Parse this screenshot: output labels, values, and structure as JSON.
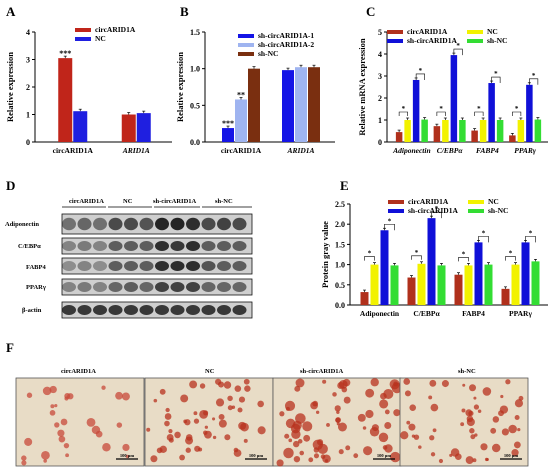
{
  "panel_letters": [
    "A",
    "B",
    "C",
    "D",
    "E",
    "F"
  ],
  "colors": {
    "circARID1A": "#c0251a",
    "NC_A": "#1f1fe0",
    "sh1": "#1414e6",
    "sh2": "#9fb4f0",
    "shNC_B": "#7a2f10",
    "circARID1A_C": "#b0301c",
    "NC_C": "#f2f200",
    "sh_C": "#1010d8",
    "shNC_C": "#33dd33"
  },
  "chart_data": [
    {
      "type": "bar",
      "panel": "A",
      "categories": [
        "circARID1A",
        "ARID1A"
      ],
      "category_italic": [
        false,
        true
      ],
      "series": [
        {
          "name": "circARID1A",
          "values": [
            3.05,
            1.0
          ]
        },
        {
          "name": "NC",
          "values": [
            1.12,
            1.05
          ]
        }
      ],
      "ylabel": "Relative expression",
      "ylim": [
        0,
        4
      ],
      "yticks": [
        "0",
        "1",
        "2",
        "3",
        "4"
      ],
      "annotations": [
        "***"
      ]
    },
    {
      "type": "bar",
      "panel": "B",
      "categories": [
        "circARID1A",
        "ARID1A"
      ],
      "category_italic": [
        false,
        true
      ],
      "series": [
        {
          "name": "sh-circARID1A-1",
          "values": [
            0.19,
            0.98
          ]
        },
        {
          "name": "sh-circARID1A-2",
          "values": [
            0.58,
            1.02
          ]
        },
        {
          "name": "sh-NC",
          "values": [
            1.0,
            1.02
          ]
        }
      ],
      "ylabel": "Relative expression",
      "ylim": [
        0,
        1.5
      ],
      "yticks": [
        "0.0",
        "0.5",
        "1.0",
        "1.5"
      ],
      "annotations": [
        "***",
        "**"
      ]
    },
    {
      "type": "bar",
      "panel": "C",
      "categories": [
        "Adiponectin",
        "C/EBPα",
        "FABP4",
        "PPARγ"
      ],
      "category_italic": [
        true,
        true,
        true,
        true
      ],
      "series": [
        {
          "name": "circARID1A",
          "values": [
            0.45,
            0.72,
            0.52,
            0.3
          ]
        },
        {
          "name": "NC",
          "values": [
            1.0,
            1.0,
            1.0,
            1.0
          ]
        },
        {
          "name": "sh-circARID1A",
          "values": [
            2.82,
            3.95,
            2.68,
            2.6
          ]
        },
        {
          "name": "sh-NC",
          "values": [
            1.02,
            1.0,
            1.0,
            1.02
          ]
        }
      ],
      "ylabel": "Relative mRNA expression",
      "ylim": [
        0,
        5
      ],
      "yticks": [
        "0",
        "1",
        "2",
        "3",
        "4",
        "5"
      ],
      "annotations": [
        "*"
      ]
    },
    {
      "type": "bar",
      "panel": "E",
      "categories": [
        "Adiponectin",
        "C/EBPα",
        "FABP4",
        "PPARγ"
      ],
      "category_italic": [
        false,
        false,
        false,
        false
      ],
      "series": [
        {
          "name": "circARID1A",
          "values": [
            0.32,
            0.68,
            0.75,
            0.4
          ]
        },
        {
          "name": "NC",
          "values": [
            1.0,
            1.02,
            0.98,
            1.0
          ]
        },
        {
          "name": "sh-circARID1A",
          "values": [
            1.85,
            2.15,
            1.55,
            1.55
          ]
        },
        {
          "name": "sh-NC",
          "values": [
            0.98,
            0.98,
            1.0,
            1.08
          ]
        }
      ],
      "ylabel": "Protein gray value",
      "ylim": [
        0,
        2.5
      ],
      "yticks": [
        "0.0",
        "0.5",
        "1.0",
        "1.5",
        "2.0",
        "2.5"
      ],
      "annotations": [
        "*"
      ]
    }
  ],
  "western_blot": {
    "group_labels": [
      "circARID1A",
      "NC",
      "sh-circARID1A",
      "sh-NC"
    ],
    "row_labels": [
      "Adiponectin",
      "C/EBPα",
      "FABP4",
      "PPARγ",
      "β-actin"
    ],
    "lanes": 12
  },
  "micrographs": {
    "labels": [
      "circARID1A",
      "NC",
      "sh-circARID1A",
      "sh-NC"
    ],
    "scale_bar": "100 μm"
  }
}
